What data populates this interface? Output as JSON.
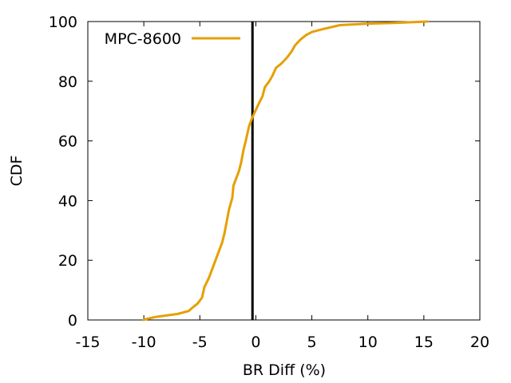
{
  "chart_data": {
    "type": "line",
    "title": "",
    "xlabel": "BR Diff (%)",
    "ylabel": "CDF",
    "xlim": [
      -15,
      20
    ],
    "ylim": [
      0,
      100
    ],
    "xticks": [
      -15,
      -10,
      -5,
      0,
      5,
      10,
      15,
      20
    ],
    "yticks": [
      0,
      20,
      40,
      60,
      80,
      100
    ],
    "x_tick_labels": [
      "-15",
      "-10",
      "-5",
      "0",
      "5",
      "10",
      "15",
      "20"
    ],
    "y_tick_labels": [
      "0",
      "20",
      "40",
      "60",
      "80",
      "100"
    ],
    "grid": false,
    "legend_position": "top-left",
    "reference_line": {
      "x": -0.3,
      "color": "#000000"
    },
    "series": [
      {
        "name": "MPC-8600",
        "color": "#e69f00",
        "points": [
          [
            -10.0,
            0.0
          ],
          [
            -9.8,
            0.3
          ],
          [
            -9.0,
            1.0
          ],
          [
            -8.0,
            1.5
          ],
          [
            -7.0,
            2.0
          ],
          [
            -6.0,
            3.0
          ],
          [
            -5.7,
            4.0
          ],
          [
            -5.2,
            5.5
          ],
          [
            -4.8,
            7.5
          ],
          [
            -4.6,
            11.0
          ],
          [
            -4.2,
            14.0
          ],
          [
            -3.8,
            18.0
          ],
          [
            -3.4,
            22.0
          ],
          [
            -3.0,
            26.0
          ],
          [
            -2.8,
            29.0
          ],
          [
            -2.6,
            33.0
          ],
          [
            -2.4,
            37.0
          ],
          [
            -2.1,
            41.0
          ],
          [
            -2.0,
            45.0
          ],
          [
            -1.8,
            47.0
          ],
          [
            -1.5,
            50.0
          ],
          [
            -1.3,
            53.0
          ],
          [
            -1.1,
            57.0
          ],
          [
            -0.9,
            60.0
          ],
          [
            -0.6,
            65.0
          ],
          [
            -0.3,
            68.0
          ],
          [
            0.2,
            72.0
          ],
          [
            0.6,
            75.0
          ],
          [
            0.8,
            78.0
          ],
          [
            1.2,
            80.0
          ],
          [
            1.5,
            82.0
          ],
          [
            1.8,
            84.5
          ],
          [
            2.3,
            86.0
          ],
          [
            2.8,
            88.0
          ],
          [
            3.2,
            90.0
          ],
          [
            3.5,
            92.0
          ],
          [
            4.0,
            94.0
          ],
          [
            4.5,
            95.5
          ],
          [
            5.0,
            96.5
          ],
          [
            6.0,
            97.5
          ],
          [
            7.5,
            98.8
          ],
          [
            10.0,
            99.3
          ],
          [
            12.0,
            99.5
          ],
          [
            15.3,
            100.0
          ]
        ]
      }
    ]
  }
}
